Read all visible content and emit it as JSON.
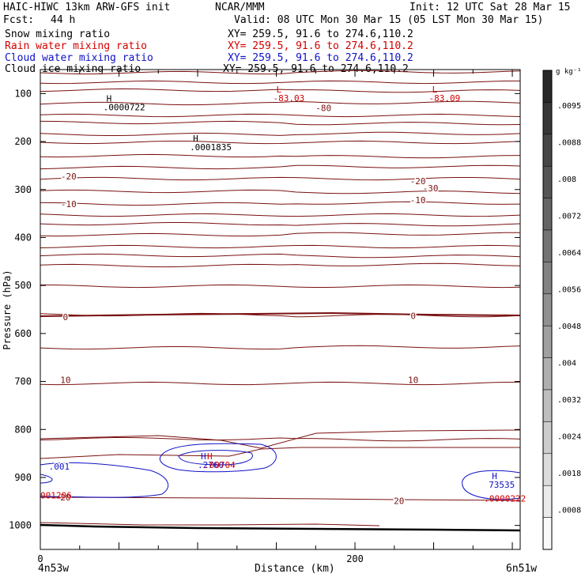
{
  "header": {
    "title_left": "HAIC-HIWC 13km ARW-GFS init",
    "org": "NCAR/MMM",
    "init": "Init: 12 UTC Sat 28 Mar 15",
    "fcst_label": "Fcst:",
    "fcst_value": "44 h",
    "valid": "Valid: 08 UTC Mon 30 Mar 15 (05 LST Mon 30 Mar 15)"
  },
  "fields": [
    {
      "name": "Snow mixing ratio",
      "xy": "XY= 259.5, 91.6 to 274.6,110.2",
      "color": "#000000"
    },
    {
      "name": "Rain water mixing ratio",
      "xy": "XY= 259.5, 91.6 to 274.6,110.2",
      "color": "#d40000"
    },
    {
      "name": "Cloud water mixing ratio",
      "xy": "XY= 259.5, 91.6 to 274.6,110.2",
      "color": "#1010c8"
    },
    {
      "name": "Cloud ice mixing ratio",
      "xy": "XY= 259.5, 91.6 to 274.6,110.2",
      "color": "#000000"
    }
  ],
  "footer": {
    "left_point": "4n53w",
    "right_point": "6n51w",
    "xlabel": "Distance (km)"
  },
  "chart_data": {
    "type": "contour",
    "ylabel": "Pressure (hPa)",
    "xlabel": "Distance (km)",
    "xlim": [
      0,
      305
    ],
    "ylim": [
      50,
      1050
    ],
    "y_reversed": true,
    "x_ticks": [
      "0",
      "200"
    ],
    "x_tick_values": [
      0,
      200
    ],
    "y_ticks": [
      "100",
      "200",
      "300",
      "400",
      "500",
      "600",
      "700",
      "800",
      "900",
      "1000"
    ],
    "y_tick_values": [
      100,
      200,
      300,
      400,
      500,
      600,
      700,
      800,
      900,
      1000
    ],
    "temperature_contour_labels": [
      {
        "text": "-80",
        "x": 180,
        "p": 130
      },
      {
        "text": "-30",
        "x": 248,
        "p": 297
      },
      {
        "text": "-20",
        "x": 18,
        "p": 272
      },
      {
        "text": "-20",
        "x": 240,
        "p": 282
      },
      {
        "text": "-10",
        "x": 18,
        "p": 330
      },
      {
        "text": "-10",
        "x": 240,
        "p": 322
      },
      {
        "text": "0",
        "x": 16,
        "p": 566
      },
      {
        "text": "0",
        "x": 237,
        "p": 563
      },
      {
        "text": "10",
        "x": 16,
        "p": 697
      },
      {
        "text": "10",
        "x": 237,
        "p": 697
      },
      {
        "text": "20",
        "x": 16,
        "p": 941
      },
      {
        "text": "20",
        "x": 228,
        "p": 949
      }
    ],
    "extrema": [
      {
        "mark": "L",
        "value": "-83.03",
        "x": 148,
        "p": 98,
        "color": "#d40000"
      },
      {
        "mark": "L",
        "value": "-83.09",
        "x": 247,
        "p": 98,
        "color": "#d40000"
      },
      {
        "mark": "H",
        "value": ".0000722",
        "x": 40,
        "p": 117,
        "color": "#000000"
      },
      {
        "mark": "H",
        "value": ".0001835",
        "x": 95,
        "p": 200,
        "color": "#000000"
      },
      {
        "mark": "H",
        "value": ".2760",
        "x": 100,
        "p": 862,
        "color": "#1010c8"
      },
      {
        "mark": "H",
        "value": ".00704",
        "x": 104,
        "p": 862,
        "color": "#d40000"
      },
      {
        "mark": "H",
        "value": "73535",
        "x": 285,
        "p": 903,
        "color": "#1010c8"
      },
      {
        "mark": "",
        "value": ".0000222",
        "x": 282,
        "p": 932,
        "color": "#d40000"
      },
      {
        "mark": "",
        "value": "001206",
        "x": 0,
        "p": 926,
        "color": "#d40000"
      }
    ],
    "cloud_water_labels": [
      {
        "text": ".001",
        "x": 12,
        "p": 877
      }
    ],
    "colorbar": {
      "units": "g kg⁻¹",
      "tick_labels": [
        ".0095",
        ".0088",
        ".008",
        ".0072",
        ".0064",
        ".0056",
        ".0048",
        ".004",
        ".0032",
        ".0024",
        ".0018",
        ".0008"
      ],
      "levels": 15
    },
    "grid": false
  }
}
